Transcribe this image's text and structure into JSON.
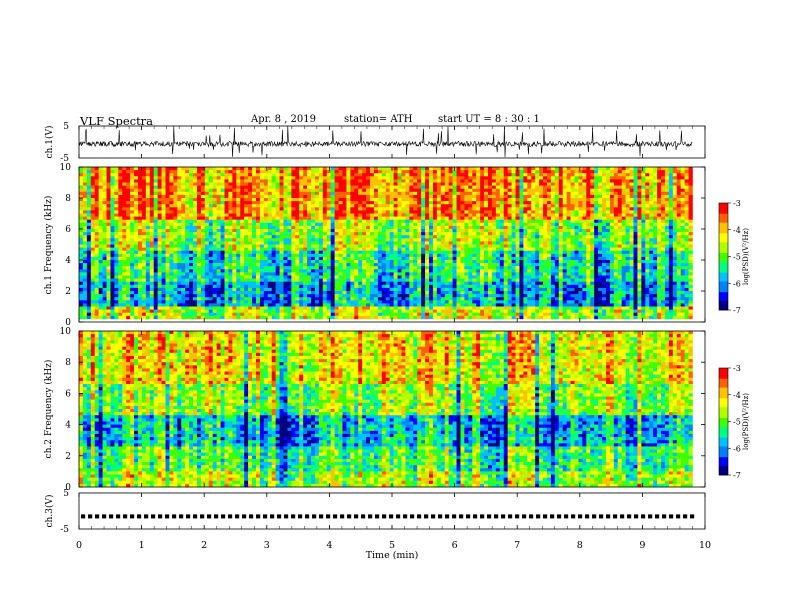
{
  "header": {
    "title": "VLF  Spectra",
    "date": "Apr. 8  , 2019",
    "station": "station= ATH",
    "start": "start  UT  =   8  : 30 : 1"
  },
  "chart_data": [
    {
      "type": "line",
      "panel": "waveform",
      "ylabel": "ch.1(V)",
      "ylim": [
        -5,
        5
      ],
      "yticks": [
        5,
        -5
      ],
      "signal": {
        "baseline_v": -0.6,
        "noise_v": 0.8,
        "spikes": "frequent, up to ±5"
      },
      "color": "#000000"
    },
    {
      "type": "heatmap",
      "panel": "spectrogram",
      "ylabel": "ch.1 Frequency  (kHz)",
      "ylim": [
        0,
        10
      ],
      "yticks": [
        0,
        2,
        4,
        6,
        8,
        10
      ],
      "colorbar": {
        "label": "log(PSD)(V²/Hz)",
        "range": [
          -7,
          -3
        ],
        "ticks": [
          -3,
          -4,
          -5,
          -6,
          -7
        ]
      },
      "dominant_band": {
        "high_kHz": [
          6.5,
          10
        ],
        "level": "red/orange"
      },
      "mid_band": {
        "range_kHz": [
          2.5,
          6
        ],
        "level": "green/yellow"
      },
      "low_band": {
        "range_kHz": [
          1.0,
          2.5
        ],
        "level": "cyan/blue"
      },
      "gap_kHz": [
        0.3,
        0.0
      ]
    },
    {
      "type": "heatmap",
      "panel": "spectrogram",
      "ylabel": "ch.2 Frequency  (kHz)",
      "ylim": [
        0,
        10
      ],
      "yticks": [
        0,
        2,
        4,
        6,
        8,
        10
      ],
      "colorbar": {
        "label": "log(PSD)(V²/Hz)",
        "range": [
          -7,
          -3
        ],
        "ticks": [
          -3,
          -4,
          -5,
          -6,
          -7
        ]
      },
      "dominant_band": {
        "high_kHz": [
          6.5,
          10
        ],
        "level": "orange/yellow"
      },
      "mid_band": {
        "range_kHz": [
          2.5,
          6
        ],
        "level": "green/cyan"
      },
      "low_band": {
        "range_kHz": [
          2.0,
          4.5
        ],
        "level": "blue"
      }
    },
    {
      "type": "line",
      "panel": "waveform",
      "ylabel": "ch.3(V)",
      "ylim": [
        -5,
        5
      ],
      "yticks": [
        5,
        -5
      ],
      "signal": {
        "pattern": "square pulses",
        "level_v": -1.5
      },
      "xlabel": "Time  (min)",
      "xlim": [
        0,
        10
      ],
      "xticks": [
        0,
        1,
        2,
        3,
        4,
        5,
        6,
        7,
        8,
        9,
        10
      ],
      "data_end_min": 9.8
    }
  ],
  "palette": [
    "#000080",
    "#0000ff",
    "#0080ff",
    "#00c0ff",
    "#00ff80",
    "#40ff00",
    "#b0ff00",
    "#ffff00",
    "#ffc000",
    "#ff6000",
    "#ff0000"
  ]
}
